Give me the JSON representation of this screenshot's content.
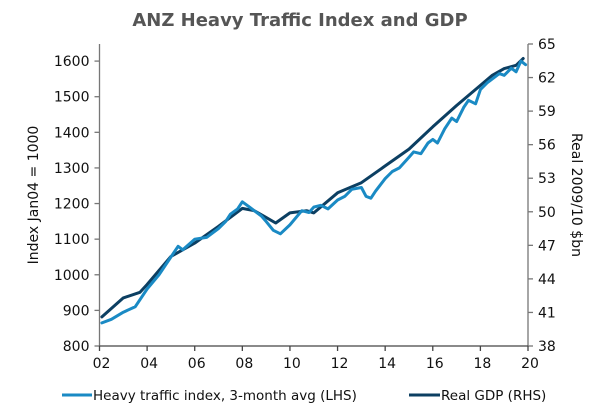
{
  "chart_data": {
    "type": "line",
    "title": "ANZ Heavy Traffic Index and GDP",
    "xlabel": "",
    "ylabel_left": "Index Jan04 = 1000",
    "ylabel_right": "Real 2009/10 $bn",
    "x_ticks": [
      "02",
      "04",
      "06",
      "08",
      "10",
      "12",
      "14",
      "16",
      "18",
      "20"
    ],
    "x_tick_values": [
      2002,
      2004,
      2006,
      2008,
      2010,
      2012,
      2014,
      2016,
      2018,
      2020
    ],
    "xlim": [
      2002,
      2020
    ],
    "ylim_left": [
      800,
      1648
    ],
    "ylim_right": [
      38,
      65
    ],
    "left_ticks": [
      800,
      900,
      1000,
      1100,
      1200,
      1300,
      1400,
      1500,
      1600
    ],
    "right_ticks": [
      38,
      41,
      44,
      47,
      50,
      53,
      56,
      59,
      62,
      65
    ],
    "grid": false,
    "legend_position": "bottom",
    "series": [
      {
        "name": "Heavy traffic index, 3-month avg (LHS)",
        "axis": "left",
        "color": "#1a8ac4",
        "x": [
          2002.1,
          2002.5,
          2003.0,
          2003.5,
          2004.0,
          2004.5,
          2005.0,
          2005.3,
          2005.5,
          2006.0,
          2006.5,
          2007.0,
          2007.3,
          2007.5,
          2007.8,
          2008.0,
          2008.3,
          2008.5,
          2008.8,
          2009.0,
          2009.3,
          2009.6,
          2010.0,
          2010.5,
          2010.8,
          2011.0,
          2011.3,
          2011.6,
          2012.0,
          2012.3,
          2012.6,
          2013.0,
          2013.2,
          2013.4,
          2013.6,
          2014.0,
          2014.3,
          2014.6,
          2015.0,
          2015.2,
          2015.5,
          2015.8,
          2016.0,
          2016.2,
          2016.5,
          2016.8,
          2017.0,
          2017.3,
          2017.5,
          2017.8,
          2018.0,
          2018.3,
          2018.5,
          2018.8,
          2019.0,
          2019.3,
          2019.5,
          2019.7,
          2019.9
        ],
        "values": [
          865,
          875,
          895,
          910,
          960,
          1000,
          1050,
          1080,
          1070,
          1100,
          1105,
          1130,
          1150,
          1170,
          1185,
          1205,
          1190,
          1180,
          1165,
          1150,
          1125,
          1115,
          1140,
          1180,
          1175,
          1190,
          1195,
          1185,
          1210,
          1220,
          1240,
          1245,
          1220,
          1215,
          1235,
          1270,
          1290,
          1300,
          1330,
          1345,
          1340,
          1370,
          1380,
          1370,
          1410,
          1440,
          1430,
          1470,
          1490,
          1480,
          1520,
          1540,
          1550,
          1565,
          1560,
          1580,
          1570,
          1600,
          1590
        ]
      },
      {
        "name": "Real GDP (RHS)",
        "axis": "right",
        "color": "#0c3f62",
        "x": [
          2002.1,
          2003.0,
          2003.7,
          2004.0,
          2005.0,
          2006.0,
          2007.0,
          2008.0,
          2008.5,
          2009.0,
          2009.4,
          2010.0,
          2010.7,
          2011.0,
          2012.0,
          2013.0,
          2014.0,
          2015.0,
          2016.0,
          2017.0,
          2018.0,
          2018.5,
          2019.0,
          2019.5,
          2019.8
        ],
        "values": [
          40.6,
          42.3,
          42.8,
          43.5,
          46.0,
          47.2,
          48.7,
          50.3,
          50.1,
          49.5,
          49.0,
          49.9,
          50.1,
          49.9,
          51.7,
          52.6,
          54.1,
          55.6,
          57.6,
          59.5,
          61.3,
          62.2,
          62.8,
          63.1,
          63.7
        ]
      }
    ]
  }
}
